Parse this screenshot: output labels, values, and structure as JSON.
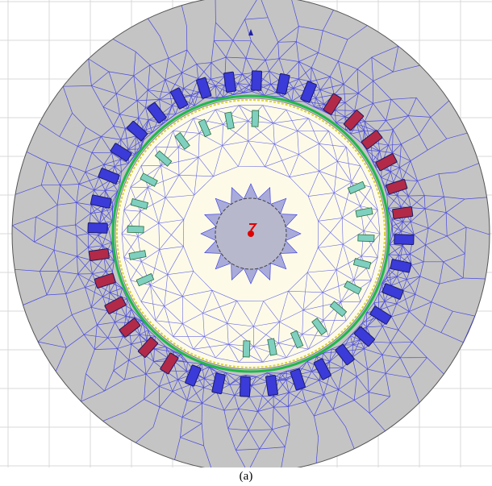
{
  "caption": "(a)",
  "colors": {
    "background": "#ffffff",
    "grid": "#d9d9d9",
    "stator_fill": "#c4c4c4",
    "rotor_fill": "#fdfbe8",
    "shaft_fill": "#b8b8cc",
    "mesh": "#3535e6",
    "airgap": "#1fb84a",
    "rotor_gap_mesh": "#d8d13a",
    "stator_slot_a": "#3b3bd9",
    "stator_slot_b": "#b22a47",
    "rotor_bar": "#7fd0c0",
    "marker": "#e00000"
  },
  "stator": {
    "slots": 36,
    "phase_b_slots": [
      3,
      4,
      5,
      6,
      7,
      8,
      21,
      22,
      23,
      24,
      25,
      26
    ]
  },
  "rotor": {
    "bars": 28,
    "empty_bars": [
      0,
      1,
      2,
      3,
      14,
      15,
      16,
      17
    ]
  },
  "icons": {
    "origin": "origin-axis-icon",
    "center": "rotation-center-icon"
  }
}
